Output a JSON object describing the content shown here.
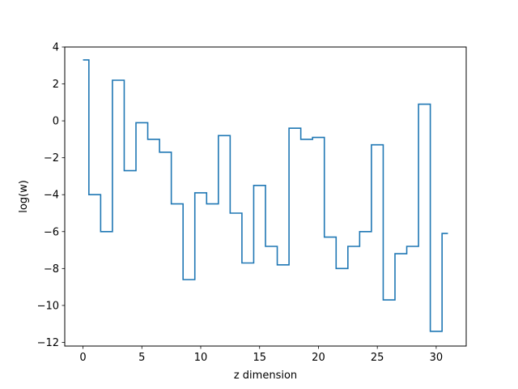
{
  "chart_data": {
    "type": "line",
    "drawstyle": "steps-mid",
    "xlabel": "z dimension",
    "ylabel": "log(w)",
    "xlim": [
      -1.55,
      32.55
    ],
    "ylim": [
      -12.2,
      4.0
    ],
    "xticks": [
      0,
      5,
      10,
      15,
      20,
      25,
      30
    ],
    "yticks": [
      -12,
      -10,
      -8,
      -6,
      -4,
      -2,
      0,
      2,
      4
    ],
    "xtick_labels": [
      "0",
      "5",
      "10",
      "15",
      "20",
      "25",
      "30"
    ],
    "ytick_labels": [
      "−12",
      "−10",
      "−8",
      "−6",
      "−4",
      "−2",
      "0",
      "2",
      "4"
    ],
    "grid": false,
    "series": [
      {
        "color": "#1f77b4",
        "x": [
          0,
          1,
          2,
          3,
          4,
          5,
          6,
          7,
          8,
          9,
          10,
          11,
          12,
          13,
          14,
          15,
          16,
          17,
          18,
          19,
          20,
          21,
          22,
          23,
          24,
          25,
          26,
          27,
          28,
          29,
          30,
          31
        ],
        "y": [
          3.3,
          -4.0,
          -6.0,
          2.2,
          -2.7,
          -0.1,
          -1.0,
          -1.7,
          -4.5,
          -8.6,
          -3.9,
          -4.5,
          -0.8,
          -5.0,
          -7.7,
          -3.5,
          -6.8,
          -7.8,
          -0.4,
          -1.0,
          -0.9,
          -6.3,
          -8.0,
          -6.8,
          -6.0,
          -1.3,
          -9.7,
          -7.2,
          -6.8,
          0.9,
          -11.4,
          -6.1
        ]
      }
    ]
  }
}
